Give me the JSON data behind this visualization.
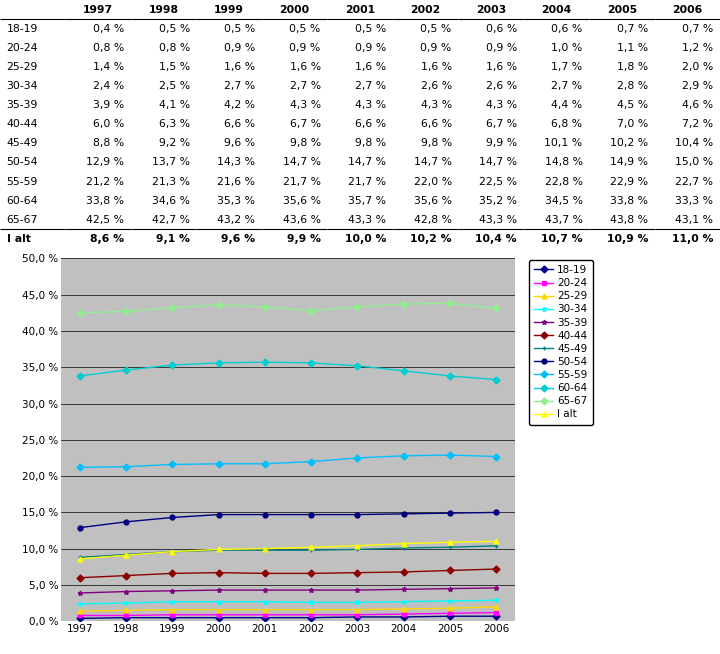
{
  "years": [
    1997,
    1998,
    1999,
    2000,
    2001,
    2002,
    2003,
    2004,
    2005,
    2006
  ],
  "table_rows": [
    {
      "label": "18-19",
      "values": [
        0.4,
        0.5,
        0.5,
        0.5,
        0.5,
        0.5,
        0.6,
        0.6,
        0.7,
        0.7
      ]
    },
    {
      "label": "20-24",
      "values": [
        0.8,
        0.8,
        0.9,
        0.9,
        0.9,
        0.9,
        0.9,
        1.0,
        1.1,
        1.2
      ]
    },
    {
      "label": "25-29",
      "values": [
        1.4,
        1.5,
        1.6,
        1.6,
        1.6,
        1.6,
        1.6,
        1.7,
        1.8,
        2.0
      ]
    },
    {
      "label": "30-34",
      "values": [
        2.4,
        2.5,
        2.7,
        2.7,
        2.7,
        2.6,
        2.6,
        2.7,
        2.8,
        2.9
      ]
    },
    {
      "label": "35-39",
      "values": [
        3.9,
        4.1,
        4.2,
        4.3,
        4.3,
        4.3,
        4.3,
        4.4,
        4.5,
        4.6
      ]
    },
    {
      "label": "40-44",
      "values": [
        6.0,
        6.3,
        6.6,
        6.7,
        6.6,
        6.6,
        6.7,
        6.8,
        7.0,
        7.2
      ]
    },
    {
      "label": "45-49",
      "values": [
        8.8,
        9.2,
        9.6,
        9.8,
        9.8,
        9.8,
        9.9,
        10.1,
        10.2,
        10.4
      ]
    },
    {
      "label": "50-54",
      "values": [
        12.9,
        13.7,
        14.3,
        14.7,
        14.7,
        14.7,
        14.7,
        14.8,
        14.9,
        15.0
      ]
    },
    {
      "label": "55-59",
      "values": [
        21.2,
        21.3,
        21.6,
        21.7,
        21.7,
        22.0,
        22.5,
        22.8,
        22.9,
        22.7
      ]
    },
    {
      "label": "60-64",
      "values": [
        33.8,
        34.6,
        35.3,
        35.6,
        35.7,
        35.6,
        35.2,
        34.5,
        33.8,
        33.3
      ]
    },
    {
      "label": "65-67",
      "values": [
        42.5,
        42.7,
        43.2,
        43.6,
        43.3,
        42.8,
        43.3,
        43.7,
        43.8,
        43.1
      ]
    },
    {
      "label": "I alt",
      "values": [
        8.6,
        9.1,
        9.6,
        9.9,
        10.0,
        10.2,
        10.4,
        10.7,
        10.9,
        11.0
      ]
    }
  ],
  "line_series": [
    {
      "label": "18-19",
      "color": "#00008B",
      "marker": "D",
      "values": [
        0.4,
        0.5,
        0.5,
        0.5,
        0.5,
        0.5,
        0.6,
        0.6,
        0.7,
        0.7
      ]
    },
    {
      "label": "20-24",
      "color": "#FF00FF",
      "marker": "s",
      "values": [
        0.8,
        0.8,
        0.9,
        0.9,
        0.9,
        0.9,
        0.9,
        1.0,
        1.1,
        1.2
      ]
    },
    {
      "label": "25-29",
      "color": "#FFD700",
      "marker": "^",
      "values": [
        1.4,
        1.5,
        1.6,
        1.6,
        1.6,
        1.6,
        1.6,
        1.7,
        1.8,
        2.0
      ]
    },
    {
      "label": "30-34",
      "color": "#00FFFF",
      "marker": "*",
      "values": [
        2.4,
        2.5,
        2.7,
        2.7,
        2.7,
        2.6,
        2.6,
        2.7,
        2.8,
        2.9
      ]
    },
    {
      "label": "35-39",
      "color": "#800080",
      "marker": "*",
      "values": [
        3.9,
        4.1,
        4.2,
        4.3,
        4.3,
        4.3,
        4.3,
        4.4,
        4.5,
        4.6
      ]
    },
    {
      "label": "40-44",
      "color": "#8B0000",
      "marker": "D",
      "values": [
        6.0,
        6.3,
        6.6,
        6.7,
        6.6,
        6.6,
        6.7,
        6.8,
        7.0,
        7.2
      ]
    },
    {
      "label": "45-49",
      "color": "#008080",
      "marker": "+",
      "values": [
        8.8,
        9.2,
        9.6,
        9.8,
        9.8,
        9.8,
        9.9,
        10.1,
        10.2,
        10.4
      ]
    },
    {
      "label": "50-54",
      "color": "#000080",
      "marker": "o",
      "values": [
        12.9,
        13.7,
        14.3,
        14.7,
        14.7,
        14.7,
        14.7,
        14.8,
        14.9,
        15.0
      ]
    },
    {
      "label": "55-59",
      "color": "#00BFFF",
      "marker": "D",
      "values": [
        21.2,
        21.3,
        21.6,
        21.7,
        21.7,
        22.0,
        22.5,
        22.8,
        22.9,
        22.7
      ]
    },
    {
      "label": "60-64",
      "color": "#00CED1",
      "marker": "D",
      "values": [
        33.8,
        34.6,
        35.3,
        35.6,
        35.7,
        35.6,
        35.2,
        34.5,
        33.8,
        33.3
      ]
    },
    {
      "label": "65-67",
      "color": "#90EE90",
      "marker": "D",
      "values": [
        42.5,
        42.7,
        43.2,
        43.6,
        43.3,
        42.8,
        43.3,
        43.7,
        43.8,
        43.1
      ]
    },
    {
      "label": "I alt",
      "color": "#FFFF00",
      "marker": "^",
      "values": [
        8.6,
        9.1,
        9.6,
        9.9,
        10.0,
        10.2,
        10.4,
        10.7,
        10.9,
        11.0
      ]
    }
  ],
  "ylim": [
    0,
    50
  ],
  "yticks": [
    0,
    5,
    10,
    15,
    20,
    25,
    30,
    35,
    40,
    45,
    50
  ],
  "chart_bg": "#C0C0C0",
  "fig_bg": "#FFFFFF"
}
